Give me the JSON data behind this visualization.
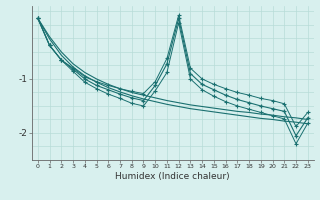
{
  "xlabel": "Humidex (Indice chaleur)",
  "bg_color": "#d8f0ee",
  "grid_color": "#b8dcd8",
  "line_color": "#1a7070",
  "x": [
    0,
    1,
    2,
    3,
    4,
    5,
    6,
    7,
    8,
    9,
    10,
    11,
    12,
    13,
    14,
    15,
    16,
    17,
    18,
    19,
    20,
    21,
    22,
    23
  ],
  "y_main": [
    0.12,
    -0.38,
    -0.65,
    -0.82,
    -1.0,
    -1.12,
    -1.2,
    -1.28,
    -1.35,
    -1.4,
    -1.12,
    -0.72,
    0.12,
    -0.9,
    -1.1,
    -1.2,
    -1.3,
    -1.38,
    -1.44,
    -1.5,
    -1.55,
    -1.6,
    -2.05,
    -1.72
  ],
  "y_upper": [
    0.12,
    -0.38,
    -0.65,
    -0.8,
    -0.96,
    -1.05,
    -1.12,
    -1.18,
    -1.23,
    -1.27,
    -1.05,
    -0.62,
    0.18,
    -0.8,
    -1.0,
    -1.1,
    -1.18,
    -1.25,
    -1.3,
    -1.36,
    -1.4,
    -1.46,
    -1.88,
    -1.62
  ],
  "y_lower": [
    0.12,
    -0.38,
    -0.65,
    -0.86,
    -1.06,
    -1.18,
    -1.28,
    -1.36,
    -1.45,
    -1.5,
    -1.22,
    -0.88,
    0.04,
    -1.0,
    -1.2,
    -1.32,
    -1.42,
    -1.5,
    -1.56,
    -1.62,
    -1.68,
    -1.74,
    -2.2,
    -1.82
  ],
  "y_lin1": [
    0.12,
    -0.26,
    -0.56,
    -0.78,
    -0.94,
    -1.06,
    -1.16,
    -1.24,
    -1.31,
    -1.37,
    -1.42,
    -1.47,
    -1.51,
    -1.55,
    -1.58,
    -1.61,
    -1.64,
    -1.67,
    -1.7,
    -1.73,
    -1.75,
    -1.78,
    -1.8,
    -1.83
  ],
  "y_lin2": [
    0.12,
    -0.22,
    -0.5,
    -0.72,
    -0.88,
    -1.0,
    -1.1,
    -1.18,
    -1.25,
    -1.3,
    -1.35,
    -1.4,
    -1.44,
    -1.48,
    -1.51,
    -1.54,
    -1.57,
    -1.6,
    -1.62,
    -1.65,
    -1.67,
    -1.7,
    -1.72,
    -1.75
  ],
  "xlim": [
    -0.5,
    23.5
  ],
  "ylim": [
    -2.5,
    0.35
  ],
  "yticks": [
    -2,
    -1
  ],
  "xticks": [
    0,
    1,
    2,
    3,
    4,
    5,
    6,
    7,
    8,
    9,
    10,
    11,
    12,
    13,
    14,
    15,
    16,
    17,
    18,
    19,
    20,
    21,
    22,
    23
  ],
  "hgrid_step": 0.25
}
